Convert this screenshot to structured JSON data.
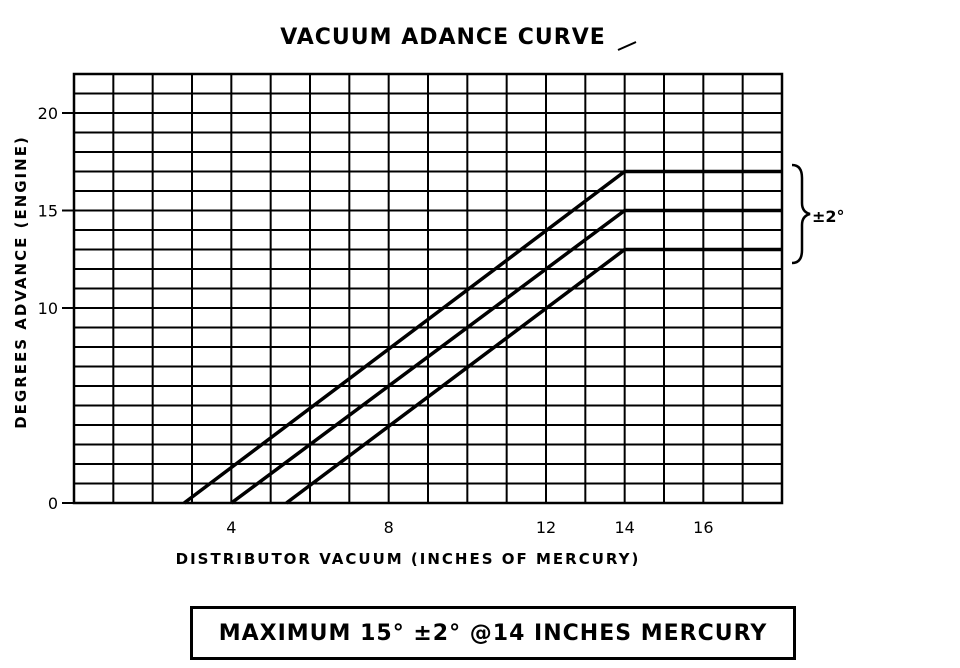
{
  "chart_data": {
    "type": "line",
    "title": "VACUUM ADANCE CURVE",
    "xlabel": "DISTRIBUTOR VACUUM (INCHES OF MERCURY)",
    "ylabel": "DEGREES ADVANCE (ENGINE)",
    "xlim": [
      0,
      18
    ],
    "ylim": [
      0,
      20
    ],
    "x_ticks": [
      4,
      8,
      12,
      14,
      16
    ],
    "y_ticks": [
      0,
      10,
      15,
      20
    ],
    "grid": true,
    "series": [
      {
        "x": [
          2.8,
          14,
          18
        ],
        "y": [
          0,
          17,
          17
        ]
      },
      {
        "x": [
          4,
          14,
          18
        ],
        "y": [
          0,
          15,
          15
        ]
      },
      {
        "x": [
          5.4,
          14,
          18
        ],
        "y": [
          0,
          13,
          13
        ]
      }
    ],
    "annotations": [
      {
        "text": "±2°",
        "note": "tolerance bracket spanning upper and lower curves"
      }
    ]
  },
  "note": {
    "text": "MAXIMUM 15° ±2° @14 INCHES MERCURY"
  }
}
